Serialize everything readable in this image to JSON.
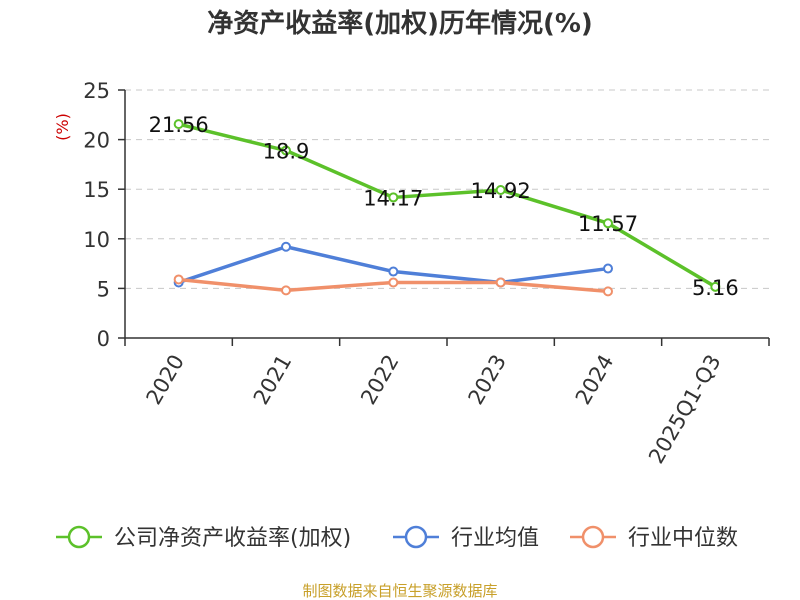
{
  "chart_data": {
    "type": "line",
    "title": "净资产收益率(加权)历年情况(%)",
    "ylabel": "(%)",
    "xlabel": "",
    "categories": [
      "2020",
      "2021",
      "2022",
      "2023",
      "2024",
      "2025Q1-Q3"
    ],
    "ylim": [
      0,
      25
    ],
    "yticks": [
      0,
      5,
      10,
      15,
      20,
      25
    ],
    "grid": true,
    "legend_position": "bottom",
    "series": [
      {
        "name": "公司净资产收益率(加权)",
        "color": "#5cc12a",
        "values": [
          21.56,
          18.9,
          14.17,
          14.92,
          11.57,
          5.16
        ],
        "labels": [
          "21.56",
          "18.9",
          "14.17",
          "14.92",
          "11.57",
          "5.16"
        ]
      },
      {
        "name": "行业均值",
        "color": "#4f7fd8",
        "values": [
          5.6,
          9.2,
          6.7,
          5.6,
          7.0,
          null
        ]
      },
      {
        "name": "行业中位数",
        "color": "#f0906a",
        "values": [
          5.9,
          4.8,
          5.6,
          5.6,
          4.7,
          null
        ]
      }
    ],
    "source": "制图数据来自恒生聚源数据库"
  }
}
